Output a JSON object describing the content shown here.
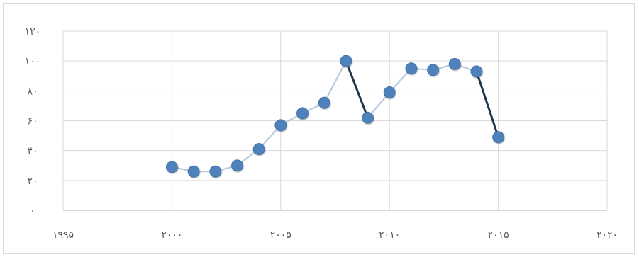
{
  "chart_data": {
    "type": "scatter",
    "title": "",
    "xlabel": "",
    "ylabel": "",
    "xlim": [
      1995,
      2020
    ],
    "ylim": [
      0,
      120
    ],
    "x_ticks": [
      1995,
      2000,
      2005,
      2010,
      2015,
      2020
    ],
    "y_ticks": [
      0,
      20,
      40,
      60,
      80,
      100,
      120
    ],
    "x_tick_labels": [
      "۱۹۹۵",
      "۲۰۰۰",
      "۲۰۰۵",
      "۲۰۱۰",
      "۲۰۱۵",
      "۲۰۲۰"
    ],
    "y_tick_labels": [
      "۰",
      "۲۰",
      "۴۰",
      "۶۰",
      "۸۰",
      "۱۰۰",
      "۱۲۰"
    ],
    "grid": true,
    "connected_line": true,
    "legend": "none",
    "series": [
      {
        "x": [
          2000,
          2001,
          2002,
          2003,
          2004,
          2005,
          2006,
          2007,
          2008,
          2009,
          2010,
          2011,
          2012,
          2013,
          2014,
          2015
        ],
        "y": [
          29,
          26,
          26,
          30,
          41,
          57,
          65,
          72,
          100,
          62,
          79,
          95,
          94,
          98,
          93,
          49
        ]
      }
    ],
    "colors": {
      "marker": "#4f81bd",
      "marker_stroke": "#3a6ea5",
      "line_light": "#b9c9de",
      "line_dark": "#1f3550",
      "grid": "#d9d9d9",
      "axis": "#bfbfbf",
      "tick_text": "#595959"
    }
  }
}
